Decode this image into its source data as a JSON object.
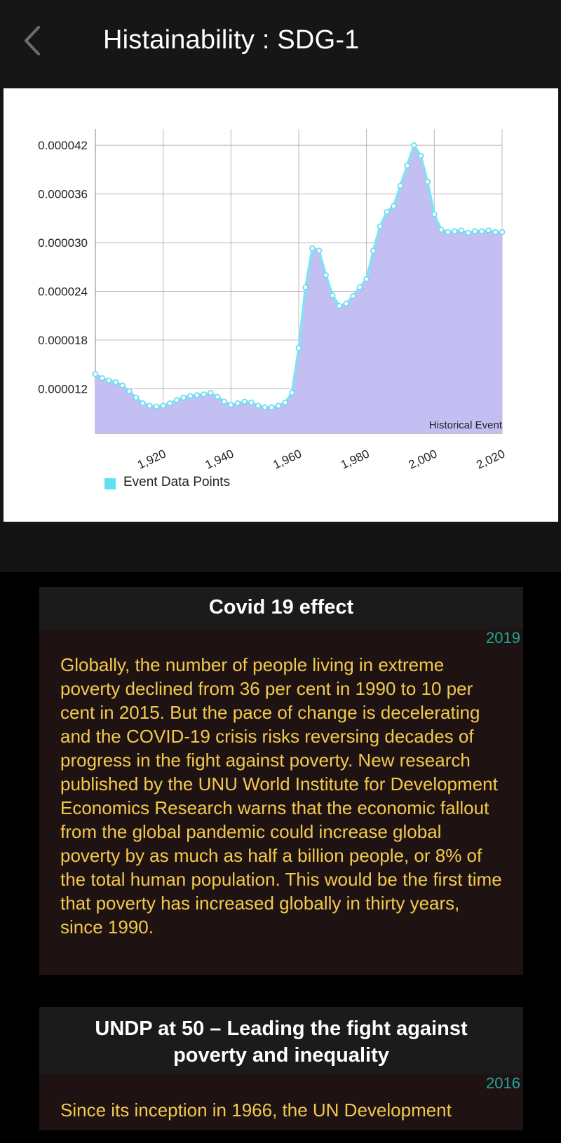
{
  "header": {
    "back_label": "Back",
    "title": "Histainability : SDG-1"
  },
  "chart_data": {
    "type": "area",
    "title": "",
    "xlabel": "",
    "ylabel": "",
    "description_label": "Historical Event",
    "legend": [
      {
        "name": "Event Data Points",
        "color": "#5ee1f5"
      }
    ],
    "fill_color": "#c3bff2",
    "line_color": "#7fe3f2",
    "x_ticks": [
      "1,920",
      "1,940",
      "1,960",
      "1,980",
      "2,000",
      "2,020"
    ],
    "x_tick_values": [
      1920,
      1940,
      1960,
      1980,
      2000,
      2020
    ],
    "y_ticks": [
      "0.000012",
      "0.000018",
      "0.000024",
      "0.000030",
      "0.000036",
      "0.000042"
    ],
    "y_tick_values": [
      1.2e-05,
      1.8e-05,
      2.4e-05,
      3e-05,
      3.6e-05,
      4.2e-05
    ],
    "xlim": [
      1900,
      2020
    ],
    "ylim": [
      6.5e-06,
      4.4e-05
    ],
    "grid": true,
    "legend_position": "bottom-left",
    "x": [
      1900,
      1902,
      1904,
      1906,
      1908,
      1910,
      1912,
      1914,
      1916,
      1918,
      1920,
      1922,
      1924,
      1926,
      1928,
      1930,
      1932,
      1934,
      1936,
      1938,
      1940,
      1942,
      1944,
      1946,
      1948,
      1950,
      1952,
      1954,
      1956,
      1958,
      1960,
      1962,
      1964,
      1966,
      1968,
      1970,
      1972,
      1974,
      1976,
      1978,
      1980,
      1982,
      1984,
      1986,
      1988,
      1990,
      1992,
      1994,
      1996,
      1998,
      2000,
      2002,
      2004,
      2006,
      2008,
      2010,
      2012,
      2014,
      2016,
      2018,
      2020
    ],
    "values": [
      1.38e-05,
      1.33e-05,
      1.3e-05,
      1.28e-05,
      1.24e-05,
      1.17e-05,
      1.09e-05,
      1.02e-05,
      9.9e-06,
      9.8e-06,
      9.9e-06,
      1.02e-05,
      1.06e-05,
      1.09e-05,
      1.11e-05,
      1.12e-05,
      1.13e-05,
      1.15e-05,
      1.1e-05,
      1.04e-05,
      1e-05,
      1.02e-05,
      1.04e-05,
      1.03e-05,
      9.9e-06,
      9.7e-06,
      9.7e-06,
      9.9e-06,
      1.03e-05,
      1.15e-05,
      1.7e-05,
      2.45e-05,
      2.93e-05,
      2.9e-05,
      2.6e-05,
      2.35e-05,
      2.22e-05,
      2.25e-05,
      2.34e-05,
      2.45e-05,
      2.55e-05,
      2.9e-05,
      3.2e-05,
      3.38e-05,
      3.45e-05,
      3.7e-05,
      3.95e-05,
      4.2e-05,
      4.07e-05,
      3.75e-05,
      3.35e-05,
      3.16e-05,
      3.13e-05,
      3.14e-05,
      3.15e-05,
      3.12e-05,
      3.14e-05,
      3.14e-05,
      3.15e-05,
      3.13e-05,
      3.13e-05
    ]
  },
  "cards": [
    {
      "title": "Covid 19 effect",
      "year": "2019",
      "text": "Globally, the number of people living in extreme poverty declined from 36 per cent in 1990 to 10 per cent in 2015. But the pace of change is decelerating and the COVID-19 crisis risks reversing decades of progress in the fight against poverty. New research published by the UNU World Institute for Development Economics Research warns that the economic fallout from the global pandemic could increase global poverty by as much as half a billion people, or 8% of the total human population. This would be the first time that poverty has increased globally in thirty years, since 1990."
    },
    {
      "title": "UNDP at 50 – Leading the fight against poverty and inequality",
      "year": "2016",
      "text": "Since its inception in 1966, the UN Development"
    }
  ],
  "colors": {
    "header_bg": "#161616",
    "card_head_bg": "#1b1b1b",
    "card_body_bg": "#1e1312",
    "card_text": "#f2c94c",
    "year_text": "#1fa89a"
  }
}
